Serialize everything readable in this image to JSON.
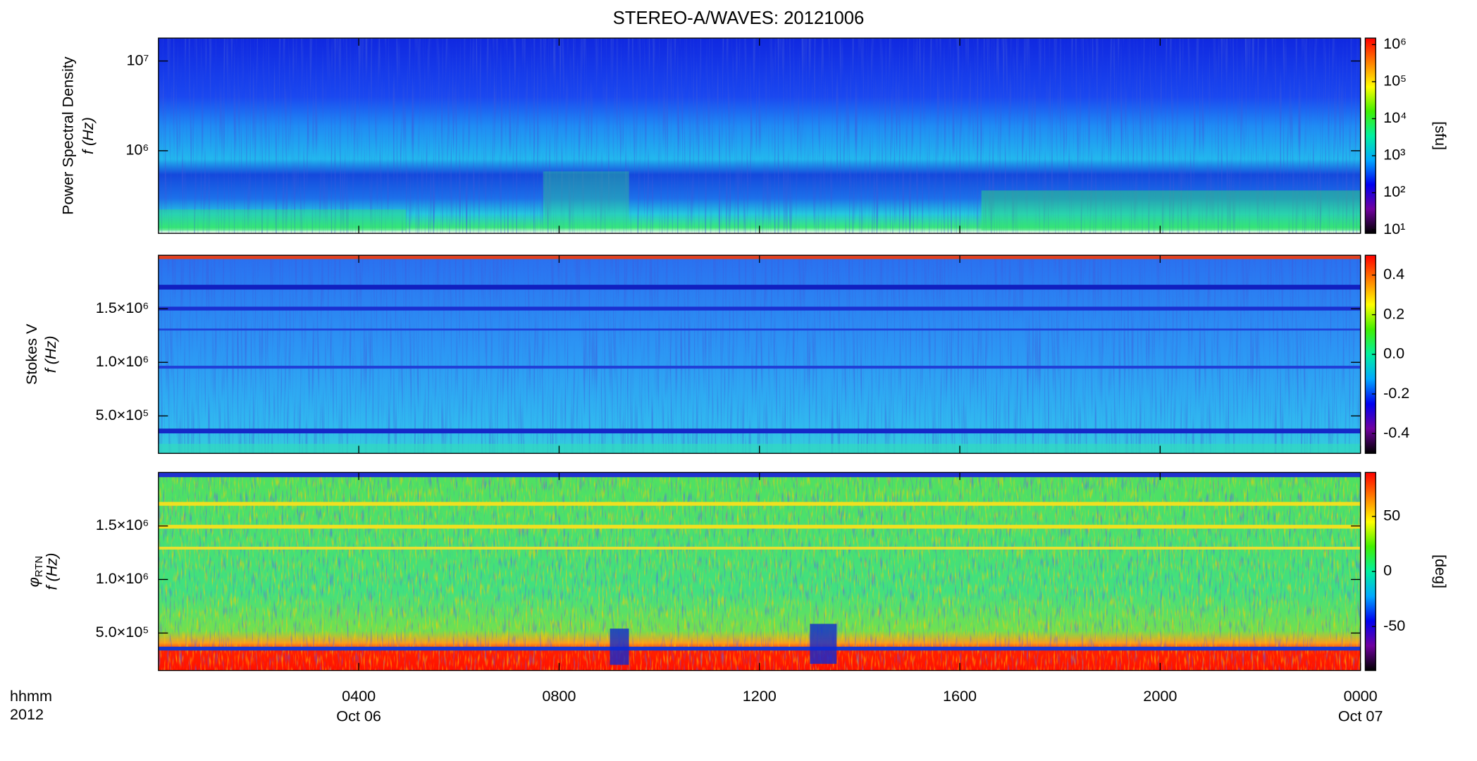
{
  "title": "STEREO-A/WAVES: 20121006",
  "colormap": [
    "#000000",
    "#7000a0",
    "#0000f0",
    "#00a8ff",
    "#00f0a0",
    "#40f000",
    "#ffff00",
    "#ff8000",
    "#ff0000"
  ],
  "x_axis": {
    "lim": [
      0,
      24
    ],
    "ticks": [
      {
        "value": 4,
        "label": "0400"
      },
      {
        "value": 8,
        "label": "0800"
      },
      {
        "value": 12,
        "label": "1200"
      },
      {
        "value": 16,
        "label": "1600"
      },
      {
        "value": 20,
        "label": "2000"
      },
      {
        "value": 24,
        "label": "0000"
      }
    ],
    "dates": [
      {
        "value": 4,
        "label": "Oct 06"
      },
      {
        "value": 24,
        "label": "Oct 07"
      }
    ],
    "label": "hhmm",
    "label2": "2012"
  },
  "chart_data": [
    {
      "type": "spectrogram",
      "ylabel": "Power Spectral Density",
      "ylabel2": "f (Hz)",
      "log_y": true,
      "ylim": [
        120000,
        18000000
      ],
      "yticks": [
        {
          "value": 1000000,
          "label": "10⁶"
        },
        {
          "value": 10000000,
          "label": "10⁷"
        }
      ],
      "colorbar": {
        "label": "[sfu]",
        "log": true,
        "lim": [
          8,
          1500000
        ],
        "ticks": [
          {
            "value": 10,
            "label": "10¹"
          },
          {
            "value": 100,
            "label": "10²"
          },
          {
            "value": 1000,
            "label": "10³"
          },
          {
            "value": 10000,
            "label": "10⁴"
          },
          {
            "value": 100000,
            "label": "10⁵"
          },
          {
            "value": 1000000,
            "label": "10⁶"
          }
        ]
      }
    },
    {
      "type": "spectrogram",
      "ylabel": "Stokes V",
      "ylabel2": "f (Hz)",
      "log_y": false,
      "ylim": [
        150000,
        2000000
      ],
      "yticks": [
        {
          "value": 500000,
          "label": "5.0×10⁵"
        },
        {
          "value": 1000000,
          "label": "1.0×10⁶"
        },
        {
          "value": 1500000,
          "label": "1.5×10⁶"
        }
      ],
      "colorbar": {
        "log": false,
        "lim": [
          -0.5,
          0.5
        ],
        "ticks": [
          -0.4,
          -0.2,
          {
            "value": 0,
            "label": "0.0"
          },
          0.2,
          0.4
        ]
      }
    },
    {
      "type": "spectrogram",
      "ylabel": {
        "symbol": "φ",
        "subscript": "RTN"
      },
      "ylabel2": "f (Hz)",
      "log_y": false,
      "ylim": [
        150000,
        2000000
      ],
      "yticks": [
        {
          "value": 500000,
          "label": "5.0×10⁵"
        },
        {
          "value": 1000000,
          "label": "1.0×10⁶"
        },
        {
          "value": 1500000,
          "label": "1.5×10⁶"
        }
      ],
      "colorbar": {
        "label": "[deg]",
        "log": false,
        "lim": [
          -90,
          90
        ],
        "ticks": [
          -50,
          0,
          50
        ]
      }
    }
  ]
}
